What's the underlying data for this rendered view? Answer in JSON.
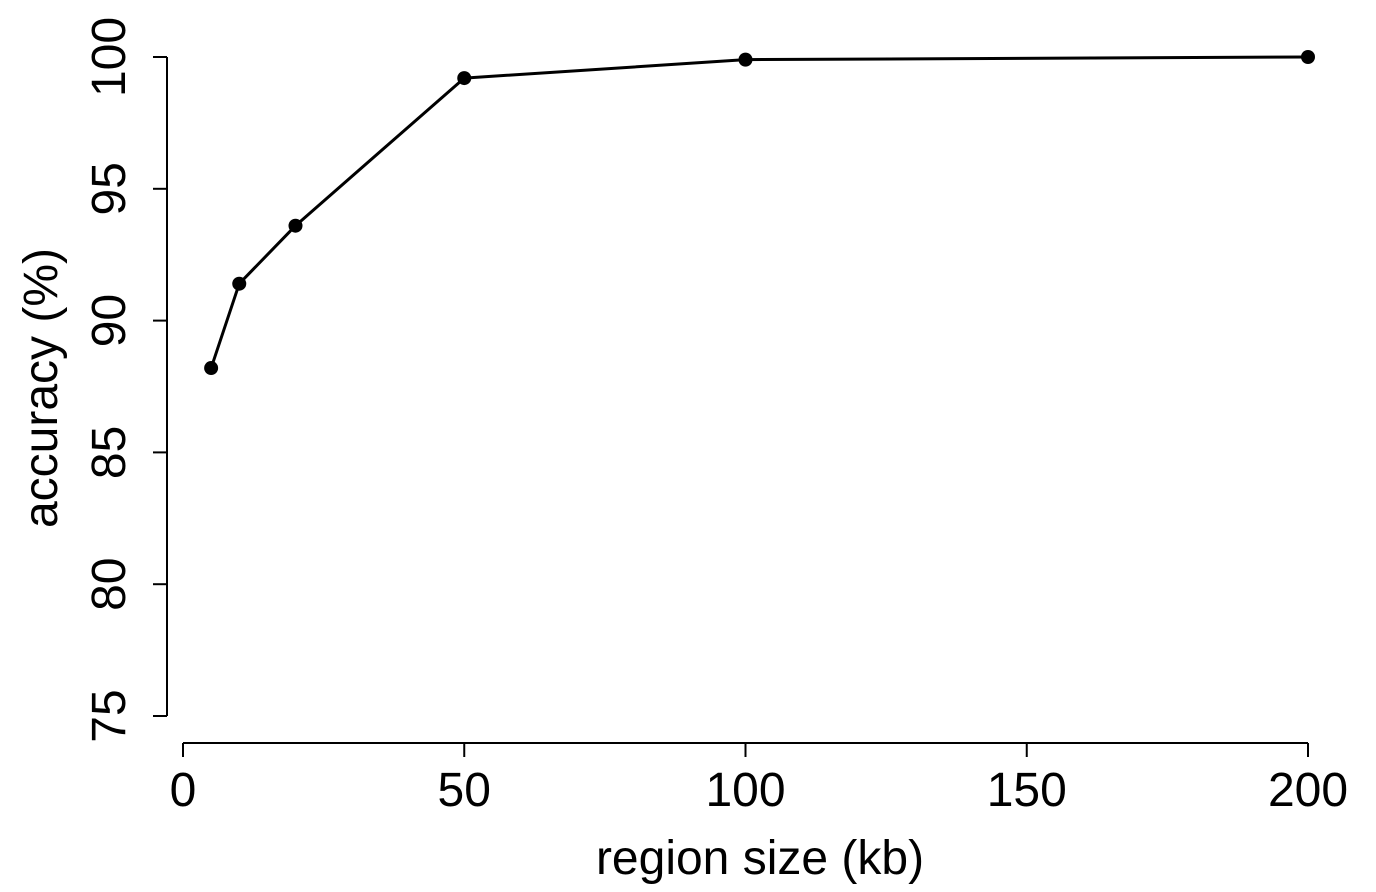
{
  "chart_data": {
    "type": "line",
    "title": "",
    "xlabel": "region size (kb)",
    "ylabel": "accuracy (%)",
    "x": [
      5,
      10,
      20,
      50,
      100,
      200
    ],
    "series": [
      {
        "values": [
          88.2,
          91.4,
          93.6,
          99.2,
          99.9,
          100.0
        ]
      }
    ],
    "x_ticks": [
      {
        "label": "0",
        "value": 0
      },
      {
        "label": "50",
        "value": 50
      },
      {
        "label": "100",
        "value": 100
      },
      {
        "label": "150",
        "value": 150
      },
      {
        "label": "200",
        "value": 200
      }
    ],
    "y_ticks": [
      {
        "label": "75",
        "value": 75
      },
      {
        "label": "80",
        "value": 80
      },
      {
        "label": "85",
        "value": 85
      },
      {
        "label": "90",
        "value": 90
      },
      {
        "label": "95",
        "value": 95
      },
      {
        "label": "100",
        "value": 100
      }
    ],
    "ylim": [
      75,
      100
    ],
    "grid": false,
    "line_color": "#000000",
    "marker": "filled-circle"
  }
}
